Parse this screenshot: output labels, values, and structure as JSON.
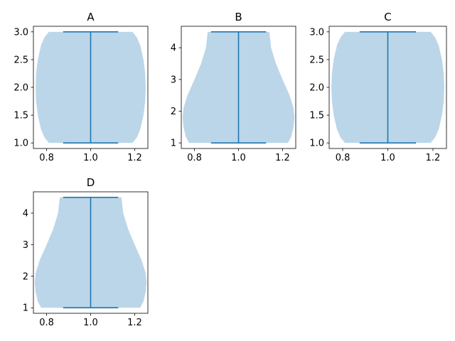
{
  "chart_data": [
    {
      "type": "violin",
      "title": "A",
      "xlabel": "",
      "ylabel": "",
      "xlim": [
        0.74,
        1.26
      ],
      "ylim": [
        0.9,
        3.1
      ],
      "x_ticks": [
        0.8,
        1.0,
        1.2
      ],
      "x_tick_labels": [
        "0.8",
        "1.0",
        "1.2"
      ],
      "y_ticks": [
        1.0,
        1.5,
        2.0,
        2.5,
        3.0
      ],
      "y_tick_labels": [
        "1.0",
        "1.5",
        "2.0",
        "2.5",
        "3.0"
      ],
      "position": 1.0,
      "min": 1.0,
      "max": 3.0,
      "density_profile": [
        {
          "y": 1.0,
          "half_width": 0.19
        },
        {
          "y": 1.1,
          "half_width": 0.21
        },
        {
          "y": 1.25,
          "half_width": 0.226
        },
        {
          "y": 1.5,
          "half_width": 0.24
        },
        {
          "y": 1.75,
          "half_width": 0.248
        },
        {
          "y": 2.0,
          "half_width": 0.25
        },
        {
          "y": 2.25,
          "half_width": 0.248
        },
        {
          "y": 2.5,
          "half_width": 0.24
        },
        {
          "y": 2.75,
          "half_width": 0.226
        },
        {
          "y": 2.9,
          "half_width": 0.21
        },
        {
          "y": 3.0,
          "half_width": 0.19
        }
      ],
      "grid": false
    },
    {
      "type": "violin",
      "title": "B",
      "xlabel": "",
      "ylabel": "",
      "xlim": [
        0.74,
        1.26
      ],
      "ylim": [
        0.825,
        4.675
      ],
      "x_ticks": [
        0.8,
        1.0,
        1.2
      ],
      "x_tick_labels": [
        "0.8",
        "1.0",
        "1.2"
      ],
      "y_ticks": [
        1,
        2,
        3,
        4
      ],
      "y_tick_labels": [
        "1",
        "2",
        "3",
        "4"
      ],
      "position": 1.0,
      "min": 1.0,
      "max": 4.5,
      "density_profile": [
        {
          "y": 1.0,
          "half_width": 0.225
        },
        {
          "y": 1.2,
          "half_width": 0.24
        },
        {
          "y": 1.5,
          "half_width": 0.25
        },
        {
          "y": 1.8,
          "half_width": 0.254
        },
        {
          "y": 2.1,
          "half_width": 0.25
        },
        {
          "y": 2.5,
          "half_width": 0.232
        },
        {
          "y": 3.0,
          "half_width": 0.2
        },
        {
          "y": 3.5,
          "half_width": 0.17
        },
        {
          "y": 4.0,
          "half_width": 0.148
        },
        {
          "y": 4.5,
          "half_width": 0.14
        }
      ],
      "grid": false
    },
    {
      "type": "violin",
      "title": "C",
      "xlabel": "",
      "ylabel": "",
      "xlim": [
        0.74,
        1.26
      ],
      "ylim": [
        0.9,
        3.1
      ],
      "x_ticks": [
        0.8,
        1.0,
        1.2
      ],
      "x_tick_labels": [
        "0.8",
        "1.0",
        "1.2"
      ],
      "y_ticks": [
        1.0,
        1.5,
        2.0,
        2.5,
        3.0
      ],
      "y_tick_labels": [
        "1.0",
        "1.5",
        "2.0",
        "2.5",
        "3.0"
      ],
      "position": 1.0,
      "min": 1.0,
      "max": 3.0,
      "density_profile": [
        {
          "y": 1.0,
          "half_width": 0.19
        },
        {
          "y": 1.1,
          "half_width": 0.21
        },
        {
          "y": 1.25,
          "half_width": 0.226
        },
        {
          "y": 1.5,
          "half_width": 0.24
        },
        {
          "y": 1.75,
          "half_width": 0.248
        },
        {
          "y": 2.0,
          "half_width": 0.25
        },
        {
          "y": 2.25,
          "half_width": 0.248
        },
        {
          "y": 2.5,
          "half_width": 0.24
        },
        {
          "y": 2.75,
          "half_width": 0.226
        },
        {
          "y": 2.9,
          "half_width": 0.21
        },
        {
          "y": 3.0,
          "half_width": 0.19
        }
      ],
      "grid": false
    },
    {
      "type": "violin",
      "title": "D",
      "xlabel": "",
      "ylabel": "",
      "xlim": [
        0.74,
        1.26
      ],
      "ylim": [
        0.825,
        4.675
      ],
      "x_ticks": [
        0.8,
        1.0,
        1.2
      ],
      "x_tick_labels": [
        "0.8",
        "1.0",
        "1.2"
      ],
      "y_ticks": [
        1,
        2,
        3,
        4
      ],
      "y_tick_labels": [
        "1",
        "2",
        "3",
        "4"
      ],
      "position": 1.0,
      "min": 1.0,
      "max": 4.5,
      "density_profile": [
        {
          "y": 1.0,
          "half_width": 0.225
        },
        {
          "y": 1.2,
          "half_width": 0.24
        },
        {
          "y": 1.5,
          "half_width": 0.25
        },
        {
          "y": 1.8,
          "half_width": 0.254
        },
        {
          "y": 2.1,
          "half_width": 0.25
        },
        {
          "y": 2.5,
          "half_width": 0.232
        },
        {
          "y": 3.0,
          "half_width": 0.2
        },
        {
          "y": 3.5,
          "half_width": 0.17
        },
        {
          "y": 4.0,
          "half_width": 0.148
        },
        {
          "y": 4.5,
          "half_width": 0.14
        }
      ],
      "grid": false
    }
  ],
  "colors": {
    "body_fill": "#1f77b4",
    "lines": "#1f77b4",
    "axes": "#000000",
    "background": "#ffffff"
  }
}
